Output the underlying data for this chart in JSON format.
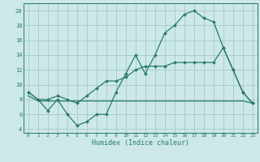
{
  "xlabel": "Humidex (Indice chaleur)",
  "background_color": "#cce8e8",
  "grid_color": "#aacece",
  "line_color": "#2a7a6a",
  "xlim": [
    -0.5,
    23.5
  ],
  "ylim": [
    3.5,
    21.0
  ],
  "xticks": [
    0,
    1,
    2,
    3,
    4,
    5,
    6,
    7,
    8,
    9,
    10,
    11,
    12,
    13,
    14,
    15,
    16,
    17,
    18,
    19,
    20,
    21,
    22,
    23
  ],
  "yticks": [
    4,
    6,
    8,
    10,
    12,
    14,
    16,
    18,
    20
  ],
  "series1_x": [
    0,
    1,
    2,
    3,
    4,
    5,
    6,
    7,
    8,
    9,
    10,
    11,
    12,
    13,
    14,
    15,
    16,
    17,
    18,
    19,
    20,
    21,
    22,
    23
  ],
  "series1_y": [
    9,
    8,
    6.5,
    8,
    6,
    4.5,
    5,
    6,
    6,
    9,
    11.5,
    14,
    11.5,
    14,
    17,
    18,
    19.5,
    20,
    19,
    18.5,
    15,
    12,
    9,
    7.5
  ],
  "series2_x": [
    0,
    1,
    2,
    3,
    4,
    5,
    6,
    7,
    8,
    9,
    10,
    11,
    12,
    13,
    14,
    15,
    16,
    17,
    18,
    19,
    20,
    21,
    22,
    23
  ],
  "series2_y": [
    8.5,
    7.8,
    7.8,
    7.8,
    7.8,
    7.8,
    7.8,
    7.8,
    7.8,
    7.8,
    7.8,
    7.8,
    7.8,
    7.8,
    7.8,
    7.8,
    7.8,
    7.8,
    7.8,
    7.8,
    7.8,
    7.8,
    7.8,
    7.5
  ],
  "series3_x": [
    0,
    1,
    2,
    3,
    4,
    5,
    6,
    7,
    8,
    9,
    10,
    11,
    12,
    13,
    14,
    15,
    16,
    17,
    18,
    19,
    20,
    21,
    22,
    23
  ],
  "series3_y": [
    9,
    8,
    8,
    8.5,
    8,
    7.5,
    8.5,
    9.5,
    10.5,
    10.5,
    11,
    12,
    12.5,
    12.5,
    12.5,
    13,
    13,
    13,
    13,
    13,
    15,
    12,
    9,
    7.5
  ]
}
